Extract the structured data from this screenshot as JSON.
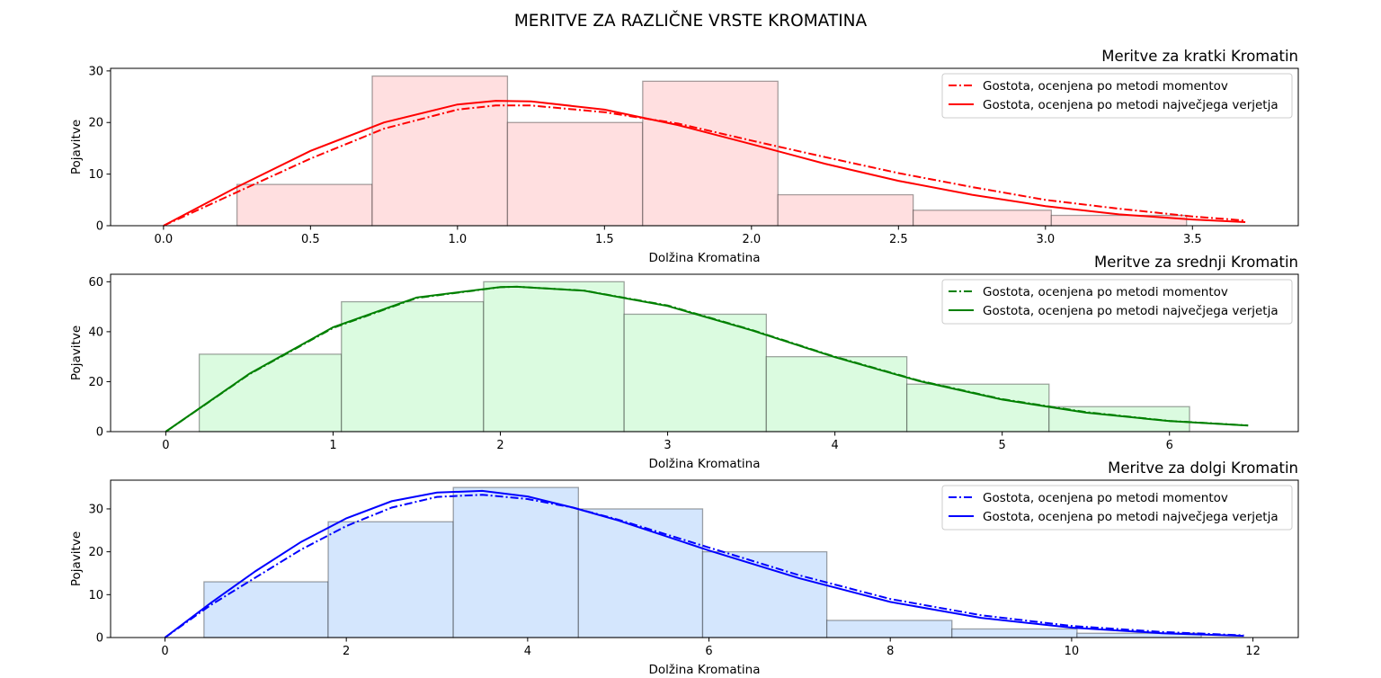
{
  "figure": {
    "title": "MERITVE ZA RAZLIČNE VRSTE KROMATINA"
  },
  "chart_data": [
    {
      "type": "bar",
      "title": "Meritve za kratki Kromatin",
      "xlabel": "Dolžina Kromatina",
      "ylabel": "Pojavitve",
      "color": "#ff0000",
      "fill": "#ffdfe0",
      "xlim": [
        -0.18,
        3.86
      ],
      "ylim": [
        0,
        30.5
      ],
      "xticks": [
        0.0,
        0.5,
        1.0,
        1.5,
        2.0,
        2.5,
        3.0,
        3.5
      ],
      "xtick_labels": [
        "0.0",
        "0.5",
        "1.0",
        "1.5",
        "2.0",
        "2.5",
        "3.0",
        "3.5"
      ],
      "yticks": [
        0,
        10,
        20,
        30
      ],
      "ytick_labels": [
        "0",
        "10",
        "20",
        "30"
      ],
      "bins": [
        {
          "x0": 0.25,
          "x1": 0.71,
          "count": 8
        },
        {
          "x0": 0.71,
          "x1": 1.17,
          "count": 29
        },
        {
          "x0": 1.17,
          "x1": 1.63,
          "count": 20
        },
        {
          "x0": 1.63,
          "x1": 2.09,
          "count": 28
        },
        {
          "x0": 2.09,
          "x1": 2.55,
          "count": 6
        },
        {
          "x0": 2.55,
          "x1": 3.02,
          "count": 3
        },
        {
          "x0": 3.02,
          "x1": 3.48,
          "count": 2
        }
      ],
      "series": [
        {
          "name": "Gostota, ocenjena po metodi momentov",
          "style": "dashdot",
          "x": [
            0.0,
            0.25,
            0.5,
            0.75,
            1.0,
            1.13,
            1.25,
            1.5,
            1.75,
            2.0,
            2.25,
            2.5,
            2.75,
            3.0,
            3.25,
            3.5,
            3.68
          ],
          "y": [
            0,
            6.5,
            13.0,
            18.8,
            22.5,
            23.3,
            23.3,
            22.0,
            19.8,
            16.5,
            13.3,
            10.2,
            7.5,
            5.0,
            3.3,
            1.8,
            1.0
          ]
        },
        {
          "name": "Gostota, ocenjena po metodi največjega verjetja",
          "style": "solid",
          "x": [
            0.0,
            0.25,
            0.5,
            0.75,
            1.0,
            1.13,
            1.25,
            1.5,
            1.75,
            2.0,
            2.25,
            2.5,
            2.75,
            3.0,
            3.25,
            3.5,
            3.68
          ],
          "y": [
            0,
            7.5,
            14.5,
            20.0,
            23.5,
            24.2,
            24.1,
            22.5,
            19.5,
            15.8,
            12.0,
            8.7,
            6.0,
            3.8,
            2.2,
            1.2,
            0.7
          ]
        }
      ]
    },
    {
      "type": "bar",
      "title": "Meritve za srednji Kromatin",
      "xlabel": "Dolžina Kromatina",
      "ylabel": "Pojavitve",
      "color": "#008000",
      "fill": "#dbfbe0",
      "xlim": [
        -0.33,
        6.77
      ],
      "ylim": [
        0,
        63
      ],
      "xticks": [
        0,
        1,
        2,
        3,
        4,
        5,
        6
      ],
      "xtick_labels": [
        "0",
        "1",
        "2",
        "3",
        "4",
        "5",
        "6"
      ],
      "yticks": [
        0,
        20,
        40,
        60
      ],
      "ytick_labels": [
        "0",
        "20",
        "40",
        "60"
      ],
      "bins": [
        {
          "x0": 0.2,
          "x1": 1.05,
          "count": 31
        },
        {
          "x0": 1.05,
          "x1": 1.9,
          "count": 52
        },
        {
          "x0": 1.9,
          "x1": 2.74,
          "count": 60
        },
        {
          "x0": 2.74,
          "x1": 3.59,
          "count": 47
        },
        {
          "x0": 3.59,
          "x1": 4.43,
          "count": 30
        },
        {
          "x0": 4.43,
          "x1": 5.28,
          "count": 19
        },
        {
          "x0": 5.28,
          "x1": 6.12,
          "count": 10
        }
      ],
      "series": [
        {
          "name": "Gostota, ocenjena po metodi momentov",
          "style": "dashdot",
          "x": [
            0.0,
            0.5,
            1.0,
            1.5,
            2.0,
            2.1,
            2.5,
            3.0,
            3.5,
            4.0,
            4.5,
            5.0,
            5.5,
            6.0,
            6.47
          ],
          "y": [
            0,
            23.0,
            41.5,
            53.5,
            57.8,
            58.0,
            56.5,
            50.5,
            40.8,
            30.0,
            20.5,
            13.0,
            7.8,
            4.3,
            2.5
          ]
        },
        {
          "name": "Gostota, ocenjena po metodi največjega verjetja",
          "style": "solid",
          "x": [
            0.0,
            0.5,
            1.0,
            1.5,
            2.0,
            2.1,
            2.5,
            3.0,
            3.5,
            4.0,
            4.5,
            5.0,
            5.5,
            6.0,
            6.47
          ],
          "y": [
            0,
            23.2,
            41.8,
            53.7,
            57.9,
            58.0,
            56.4,
            50.3,
            40.6,
            29.8,
            20.3,
            12.8,
            7.6,
            4.2,
            2.4
          ]
        }
      ]
    },
    {
      "type": "bar",
      "title": "Meritve za dolgi Kromatin",
      "xlabel": "Dolžina Kromatina",
      "ylabel": "Pojavitve",
      "color": "#0000ff",
      "fill": "#d4e6fd",
      "xlim": [
        -0.6,
        12.5
      ],
      "ylim": [
        0,
        36.7
      ],
      "xticks": [
        0,
        2,
        4,
        6,
        8,
        10,
        12
      ],
      "xtick_labels": [
        "0",
        "2",
        "4",
        "6",
        "8",
        "10",
        "12"
      ],
      "yticks": [
        0,
        10,
        20,
        30
      ],
      "ytick_labels": [
        "0",
        "10",
        "20",
        "30"
      ],
      "bins": [
        {
          "x0": 0.43,
          "x1": 1.8,
          "count": 13
        },
        {
          "x0": 1.8,
          "x1": 3.18,
          "count": 27
        },
        {
          "x0": 3.18,
          "x1": 4.56,
          "count": 35
        },
        {
          "x0": 4.56,
          "x1": 5.93,
          "count": 30
        },
        {
          "x0": 5.93,
          "x1": 7.3,
          "count": 20
        },
        {
          "x0": 7.3,
          "x1": 8.68,
          "count": 4
        },
        {
          "x0": 8.68,
          "x1": 10.06,
          "count": 2
        },
        {
          "x0": 10.06,
          "x1": 11.43,
          "count": 1
        }
      ],
      "series": [
        {
          "name": "Gostota, ocenjena po metodi momentov",
          "style": "dashdot",
          "x": [
            0.0,
            0.5,
            1.0,
            1.5,
            2.0,
            2.5,
            3.0,
            3.5,
            4.0,
            4.5,
            5.0,
            6.0,
            7.0,
            8.0,
            9.0,
            10.0,
            11.0,
            11.9
          ],
          "y": [
            0,
            7.5,
            14.0,
            20.5,
            26.0,
            30.3,
            32.8,
            33.3,
            32.3,
            30.3,
            27.5,
            21.0,
            14.5,
            9.0,
            5.2,
            2.7,
            1.3,
            0.5
          ]
        },
        {
          "name": "Gostota, ocenjena po metodi največjega verjetja",
          "style": "solid",
          "x": [
            0.0,
            0.5,
            1.0,
            1.5,
            2.0,
            2.5,
            3.0,
            3.5,
            4.0,
            4.5,
            5.0,
            6.0,
            7.0,
            8.0,
            9.0,
            10.0,
            11.0,
            11.9
          ],
          "y": [
            0,
            8.0,
            15.5,
            22.3,
            27.8,
            31.8,
            33.8,
            34.2,
            32.9,
            30.3,
            27.3,
            20.3,
            13.8,
            8.3,
            4.6,
            2.3,
            1.0,
            0.4
          ]
        }
      ]
    }
  ]
}
